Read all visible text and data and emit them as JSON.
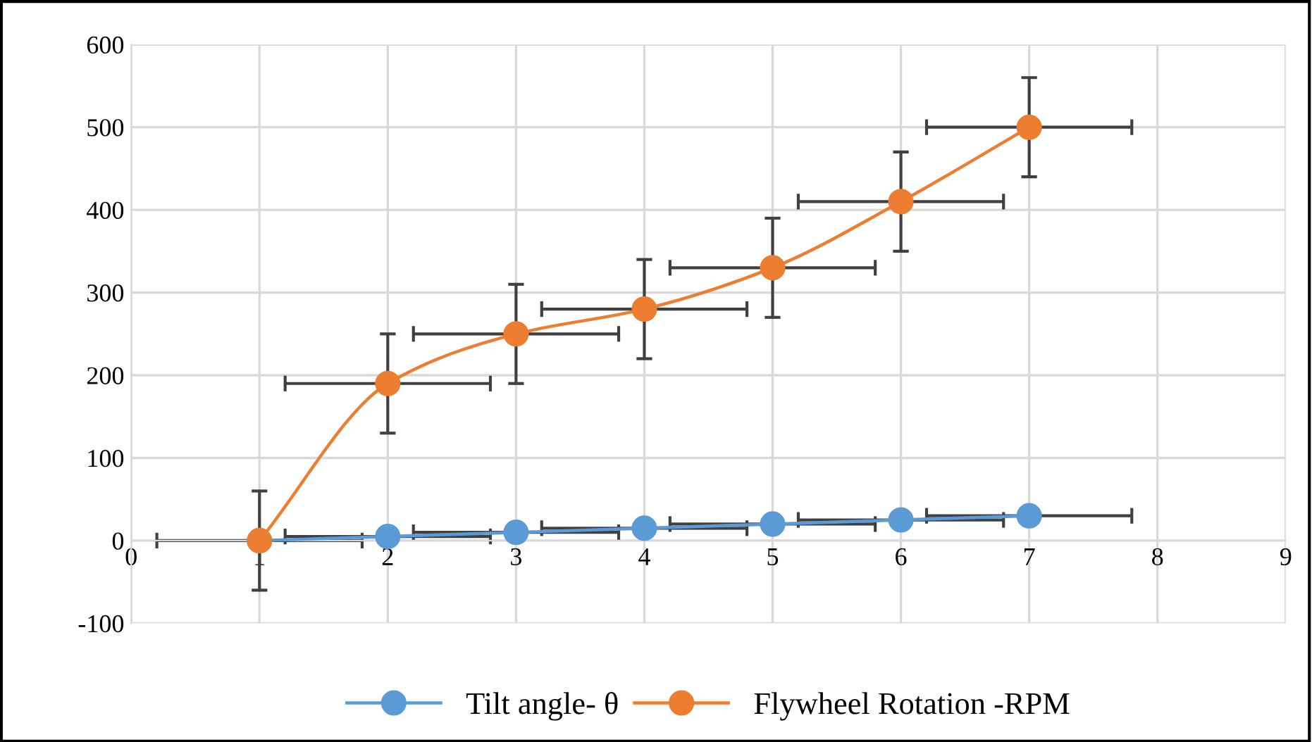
{
  "chart_data": {
    "type": "line",
    "xlim": [
      0,
      9
    ],
    "ylim": [
      -100,
      600
    ],
    "xticks": [
      0,
      1,
      2,
      3,
      4,
      5,
      6,
      7,
      8,
      9
    ],
    "yticks": [
      -100,
      0,
      100,
      200,
      300,
      400,
      500,
      600
    ],
    "grid": true,
    "legend": "bottom",
    "marker": "circle",
    "line_style": "solid",
    "series": [
      {
        "name": "Tilt angle- θ",
        "color": "#5b9bd5",
        "x": [
          1,
          2,
          3,
          4,
          5,
          6,
          7
        ],
        "values": [
          0,
          5,
          10,
          15,
          20,
          25,
          30
        ],
        "xerrors": [
          null,
          0.8,
          0.8,
          0.8,
          0.8,
          0.8,
          0.8
        ]
      },
      {
        "name": "Flywheel Rotation -RPM",
        "color": "#ed7d31",
        "x": [
          1,
          2,
          3,
          4,
          5,
          6,
          7
        ],
        "values": [
          0,
          190,
          250,
          280,
          330,
          410,
          500
        ],
        "errors": [
          60,
          60,
          60,
          60,
          60,
          60,
          60
        ],
        "xerrors": [
          0.8,
          0.8,
          0.8,
          0.8,
          0.8,
          0.8,
          0.8
        ]
      }
    ]
  }
}
